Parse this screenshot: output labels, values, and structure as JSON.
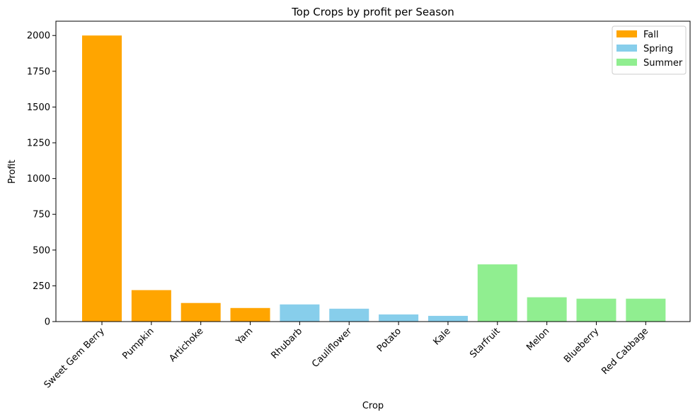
{
  "chart_data": {
    "type": "bar",
    "title": "Top Crops by profit per Season",
    "xlabel": "Crop",
    "ylabel": "Profit",
    "ylim": [
      0,
      2100
    ],
    "yticks": [
      0,
      250,
      500,
      750,
      1000,
      1250,
      1500,
      1750,
      2000
    ],
    "grid": false,
    "legend_position": "top-right",
    "categories": [
      "Sweet Gem Berry",
      "Pumpkin",
      "Artichoke",
      "Yam",
      "Rhubarb",
      "Cauliflower",
      "Potato",
      "Kale",
      "Starfruit",
      "Melon",
      "Blueberry",
      "Red Cabbage"
    ],
    "series": [
      {
        "name": "Fall",
        "color": "#FFA500",
        "values": [
          2000,
          220,
          130,
          95,
          null,
          null,
          null,
          null,
          null,
          null,
          null,
          null
        ]
      },
      {
        "name": "Spring",
        "color": "#87CEEB",
        "values": [
          null,
          null,
          null,
          null,
          120,
          90,
          50,
          40,
          null,
          null,
          null,
          null
        ]
      },
      {
        "name": "Summer",
        "color": "#90EE90",
        "values": [
          null,
          null,
          null,
          null,
          null,
          null,
          null,
          null,
          400,
          170,
          160,
          160
        ]
      }
    ]
  }
}
